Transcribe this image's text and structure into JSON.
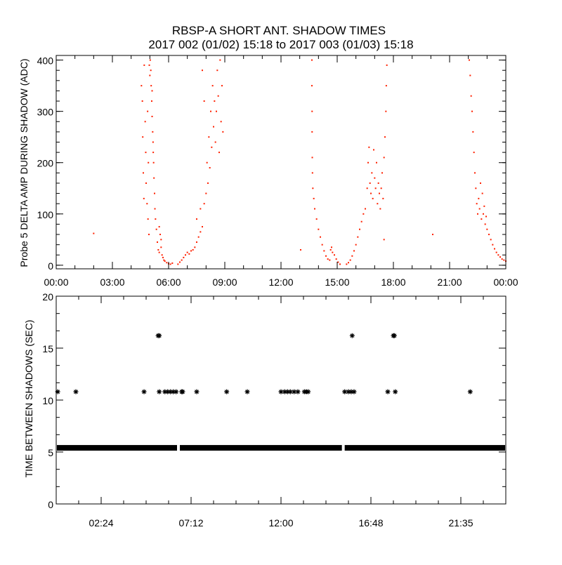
{
  "title": "RBSP-A SHORT ANT. SHADOW TIMES",
  "subtitle": "2017 002 (01/02) 15:18 to 2017 003 (01/03) 15:18",
  "chart_data": [
    {
      "type": "scatter",
      "ylabel": "Probe 5 DELTA AMP DURING SHADOW (ADC)",
      "xlabel": "",
      "xlim": [
        0,
        24
      ],
      "ylim": [
        -7,
        409
      ],
      "x_ticks": [
        0,
        3,
        6,
        9,
        12,
        15,
        18,
        21,
        24
      ],
      "x_tick_labels": [
        "00:00",
        "03:00",
        "06:00",
        "09:00",
        "12:00",
        "15:00",
        "18:00",
        "21:00",
        "00:00"
      ],
      "y_ticks": [
        0,
        100,
        200,
        300,
        400
      ],
      "y_tick_labels": [
        "0",
        "100",
        "200",
        "300",
        "400"
      ],
      "color": "#ff2000",
      "grid": false,
      "points": [
        [
          2.0,
          62
        ],
        [
          13.05,
          30
        ],
        [
          20.1,
          60
        ],
        [
          4.55,
          350
        ],
        [
          4.6,
          320
        ],
        [
          4.62,
          250
        ],
        [
          4.65,
          180
        ],
        [
          4.68,
          130
        ],
        [
          4.7,
          390
        ],
        [
          4.75,
          280
        ],
        [
          4.78,
          220
        ],
        [
          4.8,
          160
        ],
        [
          4.85,
          120
        ],
        [
          4.88,
          300
        ],
        [
          4.9,
          90
        ],
        [
          4.92,
          200
        ],
        [
          4.95,
          60
        ],
        [
          4.97,
          390
        ],
        [
          5.0,
          370
        ],
        [
          5.02,
          400
        ],
        [
          5.05,
          380
        ],
        [
          5.07,
          350
        ],
        [
          5.1,
          320
        ],
        [
          5.12,
          290
        ],
        [
          5.15,
          260
        ],
        [
          5.17,
          240
        ],
        [
          5.2,
          200
        ],
        [
          5.22,
          170
        ],
        [
          5.25,
          140
        ],
        [
          5.27,
          110
        ],
        [
          5.3,
          90
        ],
        [
          5.12,
          340
        ],
        [
          5.18,
          220
        ],
        [
          5.35,
          70
        ],
        [
          5.4,
          45
        ],
        [
          5.45,
          30
        ],
        [
          5.5,
          25
        ],
        [
          5.55,
          60
        ],
        [
          5.6,
          35
        ],
        [
          5.65,
          20
        ],
        [
          5.7,
          15
        ],
        [
          5.75,
          10
        ],
        [
          5.8,
          8
        ],
        [
          5.5,
          75
        ],
        [
          5.6,
          50
        ],
        [
          5.9,
          5
        ],
        [
          6.0,
          3
        ],
        [
          6.1,
          2
        ],
        [
          6.2,
          4
        ],
        [
          6.5,
          2
        ],
        [
          6.6,
          6
        ],
        [
          6.7,
          10
        ],
        [
          6.8,
          15
        ],
        [
          6.9,
          20
        ],
        [
          7.0,
          25
        ],
        [
          7.1,
          22
        ],
        [
          7.2,
          28
        ],
        [
          7.3,
          30
        ],
        [
          7.4,
          35
        ],
        [
          7.5,
          45
        ],
        [
          7.6,
          55
        ],
        [
          7.7,
          65
        ],
        [
          7.8,
          75
        ],
        [
          7.5,
          90
        ],
        [
          7.7,
          110
        ],
        [
          7.9,
          120
        ],
        [
          8.0,
          140
        ],
        [
          8.05,
          200
        ],
        [
          8.1,
          160
        ],
        [
          8.15,
          250
        ],
        [
          8.2,
          190
        ],
        [
          8.25,
          300
        ],
        [
          8.3,
          230
        ],
        [
          8.35,
          350
        ],
        [
          8.4,
          270
        ],
        [
          8.45,
          320
        ],
        [
          7.8,
          380
        ],
        [
          7.9,
          320
        ],
        [
          8.5,
          240
        ],
        [
          8.55,
          300
        ],
        [
          8.6,
          380
        ],
        [
          8.65,
          330
        ],
        [
          8.7,
          220
        ],
        [
          8.75,
          400
        ],
        [
          8.8,
          280
        ],
        [
          8.85,
          350
        ],
        [
          8.9,
          260
        ],
        [
          13.65,
          400
        ],
        [
          13.65,
          350
        ],
        [
          13.66,
          300
        ],
        [
          13.66,
          260
        ],
        [
          13.67,
          210
        ],
        [
          13.68,
          180
        ],
        [
          13.7,
          150
        ],
        [
          13.75,
          130
        ],
        [
          13.8,
          110
        ],
        [
          13.9,
          90
        ],
        [
          14.0,
          70
        ],
        [
          14.1,
          55
        ],
        [
          14.2,
          40
        ],
        [
          14.3,
          28
        ],
        [
          14.4,
          18
        ],
        [
          14.5,
          12
        ],
        [
          14.6,
          10
        ],
        [
          14.65,
          30
        ],
        [
          14.7,
          35
        ],
        [
          14.75,
          25
        ],
        [
          14.85,
          20
        ],
        [
          14.95,
          12
        ],
        [
          15.05,
          6
        ],
        [
          15.15,
          2
        ],
        [
          15.5,
          2
        ],
        [
          15.6,
          5
        ],
        [
          15.7,
          10
        ],
        [
          15.8,
          18
        ],
        [
          15.9,
          28
        ],
        [
          16.0,
          40
        ],
        [
          16.1,
          55
        ],
        [
          16.2,
          70
        ],
        [
          16.3,
          85
        ],
        [
          16.4,
          100
        ],
        [
          16.5,
          110
        ],
        [
          16.6,
          150
        ],
        [
          16.65,
          200
        ],
        [
          16.7,
          230
        ],
        [
          16.75,
          160
        ],
        [
          16.8,
          140
        ],
        [
          16.85,
          180
        ],
        [
          16.9,
          130
        ],
        [
          16.95,
          225
        ],
        [
          17.0,
          170
        ],
        [
          17.05,
          150
        ],
        [
          17.1,
          200
        ],
        [
          17.15,
          120
        ],
        [
          17.2,
          160
        ],
        [
          17.25,
          140
        ],
        [
          17.3,
          110
        ],
        [
          17.35,
          150
        ],
        [
          17.4,
          180
        ],
        [
          17.45,
          130
        ],
        [
          17.5,
          210
        ],
        [
          17.55,
          250
        ],
        [
          17.6,
          300
        ],
        [
          17.62,
          350
        ],
        [
          17.65,
          390
        ],
        [
          17.5,
          50
        ],
        [
          22.05,
          400
        ],
        [
          22.1,
          370
        ],
        [
          22.15,
          330
        ],
        [
          22.2,
          300
        ],
        [
          22.25,
          260
        ],
        [
          22.3,
          220
        ],
        [
          22.35,
          180
        ],
        [
          22.4,
          150
        ],
        [
          22.45,
          120
        ],
        [
          22.5,
          100
        ],
        [
          22.55,
          130
        ],
        [
          22.6,
          110
        ],
        [
          22.65,
          160
        ],
        [
          22.7,
          90
        ],
        [
          22.75,
          140
        ],
        [
          22.8,
          100
        ],
        [
          22.85,
          115
        ],
        [
          22.9,
          80
        ],
        [
          22.95,
          95
        ],
        [
          23.0,
          70
        ],
        [
          23.1,
          60
        ],
        [
          23.2,
          50
        ],
        [
          23.3,
          40
        ],
        [
          23.4,
          32
        ],
        [
          23.5,
          25
        ],
        [
          23.6,
          20
        ],
        [
          23.7,
          16
        ],
        [
          23.8,
          12
        ],
        [
          23.9,
          10
        ],
        [
          24.0,
          8
        ]
      ]
    },
    {
      "type": "scatter",
      "ylabel": "TIME BETWEEN SHADOWS (SEC)",
      "xlabel": "",
      "xlim": [
        0,
        24
      ],
      "ylim": [
        0,
        20
      ],
      "x_ticks": [
        2.4,
        7.2,
        12.0,
        16.8,
        21.6
      ],
      "x_tick_labels": [
        "02:24",
        "07:12",
        "12:00",
        "16:48",
        "21:35"
      ],
      "y_ticks": [
        0,
        5,
        10,
        15,
        20
      ],
      "y_tick_labels": [
        "0",
        "5",
        "10",
        "15",
        "20"
      ],
      "marker": "asterisk",
      "color": "#000000",
      "grid": false,
      "baseline": {
        "value": 5.4,
        "ranges": [
          [
            0,
            6.45
          ],
          [
            6.6,
            15.25
          ],
          [
            15.4,
            24
          ]
        ]
      },
      "points": [
        [
          0.08,
          10.8
        ],
        [
          1.05,
          10.8
        ],
        [
          4.69,
          10.8
        ],
        [
          5.5,
          10.8
        ],
        [
          5.8,
          10.8
        ],
        [
          5.95,
          10.8
        ],
        [
          6.1,
          10.8
        ],
        [
          6.25,
          10.8
        ],
        [
          6.4,
          10.8
        ],
        [
          6.7,
          10.8
        ],
        [
          6.75,
          10.8
        ],
        [
          7.5,
          10.8
        ],
        [
          9.1,
          10.8
        ],
        [
          10.2,
          10.8
        ],
        [
          12.0,
          10.8
        ],
        [
          12.2,
          10.8
        ],
        [
          12.35,
          10.8
        ],
        [
          12.5,
          10.8
        ],
        [
          12.7,
          10.8
        ],
        [
          12.9,
          10.8
        ],
        [
          13.25,
          10.8
        ],
        [
          13.35,
          10.8
        ],
        [
          13.45,
          10.8
        ],
        [
          15.4,
          10.8
        ],
        [
          15.6,
          10.8
        ],
        [
          15.75,
          10.8
        ],
        [
          15.9,
          10.8
        ],
        [
          17.7,
          10.8
        ],
        [
          18.1,
          10.8
        ],
        [
          22.1,
          10.8
        ],
        [
          5.44,
          16.2
        ],
        [
          5.5,
          16.2
        ],
        [
          15.8,
          16.2
        ],
        [
          18.0,
          16.2
        ],
        [
          18.05,
          16.2
        ]
      ]
    }
  ]
}
